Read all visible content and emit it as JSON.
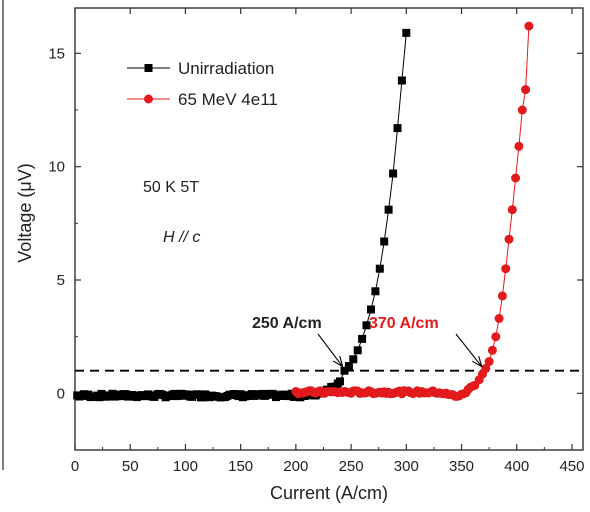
{
  "chart_data": {
    "type": "scatter",
    "xlabel": "Current (A/cm)",
    "ylabel": "Voltage (μV)",
    "xlim": [
      0,
      460
    ],
    "ylim": [
      -2.5,
      17
    ],
    "xticks": [
      0,
      50,
      100,
      150,
      200,
      250,
      300,
      350,
      400,
      450
    ],
    "yticks": [
      0,
      5,
      10,
      15
    ],
    "reference_line": {
      "y": 1.0,
      "style": "dashed",
      "color": "#000000"
    },
    "series": [
      {
        "name": "Unirradiation",
        "color": "#000000",
        "marker": "square",
        "dense_baseline": {
          "x_start": 2,
          "x_end": 240,
          "step": 2
        },
        "x": [
          244,
          248,
          252,
          256,
          260,
          264,
          268,
          272,
          276,
          280,
          284,
          288,
          292,
          296,
          300
        ],
        "y": [
          1.0,
          1.2,
          1.5,
          1.9,
          2.4,
          3.0,
          3.7,
          4.5,
          5.5,
          6.7,
          8.1,
          9.7,
          11.7,
          13.8,
          15.9
        ]
      },
      {
        "name": "65 MeV  4e11",
        "color": "#e31a1c",
        "marker": "circle",
        "dense_baseline": {
          "x_start": 200,
          "x_end": 362,
          "step": 2
        },
        "x": [
          366,
          369,
          372,
          375,
          378,
          381,
          384,
          387,
          390,
          393,
          396,
          399,
          402,
          405,
          408,
          411
        ],
        "y": [
          0.6,
          0.85,
          1.1,
          1.4,
          1.9,
          2.5,
          3.3,
          4.3,
          5.5,
          6.8,
          8.1,
          9.5,
          10.9,
          12.5,
          13.4,
          16.2
        ]
      }
    ],
    "annotations": [
      {
        "text": "250 A/cm",
        "color": "#000000",
        "arrow_to": {
          "x": 246,
          "y": 1.0
        }
      },
      {
        "text": "370 A/cm",
        "color": "#e31a1c",
        "arrow_to": {
          "x": 372,
          "y": 1.0
        }
      },
      {
        "text": "50 K  5T",
        "color": "#000000"
      },
      {
        "text": "H // c",
        "color": "#000000",
        "style": "italic"
      }
    ]
  }
}
